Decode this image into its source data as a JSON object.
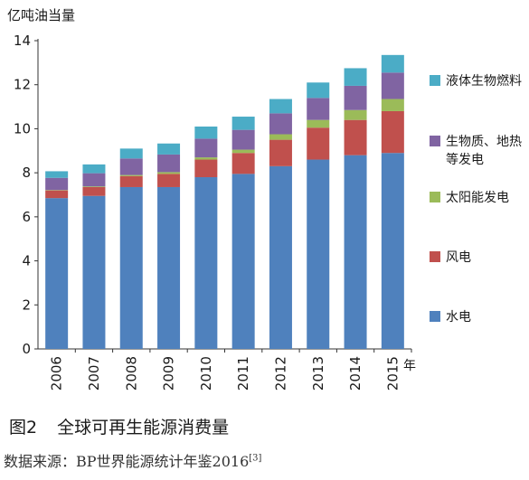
{
  "chart_data": {
    "type": "bar",
    "stacked": true,
    "ylabel": "亿吨油当量",
    "xunit": "年",
    "ylim": [
      0,
      14
    ],
    "yticks": [
      0,
      2,
      4,
      6,
      8,
      10,
      12,
      14
    ],
    "grid": false,
    "legend_position": "right",
    "categories": [
      "2006",
      "2007",
      "2008",
      "2009",
      "2010",
      "2011",
      "2012",
      "2013",
      "2014",
      "2015"
    ],
    "series": [
      {
        "name": "水电",
        "color": "#4f81bd",
        "values": [
          6.85,
          6.95,
          7.35,
          7.35,
          7.8,
          7.95,
          8.3,
          8.6,
          8.8,
          8.9
        ]
      },
      {
        "name": "风电",
        "color": "#c0504d",
        "values": [
          0.35,
          0.4,
          0.5,
          0.6,
          0.8,
          0.95,
          1.2,
          1.45,
          1.6,
          1.9
        ]
      },
      {
        "name": "太阳能发电",
        "color": "#9bbb59",
        "values": [
          0.02,
          0.03,
          0.05,
          0.08,
          0.1,
          0.15,
          0.25,
          0.35,
          0.45,
          0.55
        ]
      },
      {
        "name": "生物质、地热等发电",
        "color": "#8064a2",
        "values": [
          0.55,
          0.6,
          0.75,
          0.8,
          0.85,
          0.9,
          0.95,
          1.0,
          1.1,
          1.2
        ]
      },
      {
        "name": "液体生物燃料",
        "color": "#4bacc6",
        "values": [
          0.3,
          0.4,
          0.45,
          0.5,
          0.55,
          0.6,
          0.65,
          0.7,
          0.8,
          0.8
        ]
      }
    ]
  },
  "caption": {
    "fig_no": "图2",
    "title": "全球可再生能源消费量"
  },
  "source": {
    "text": "数据来源：BP世界能源统计年鉴2016",
    "ref": "[3]"
  }
}
